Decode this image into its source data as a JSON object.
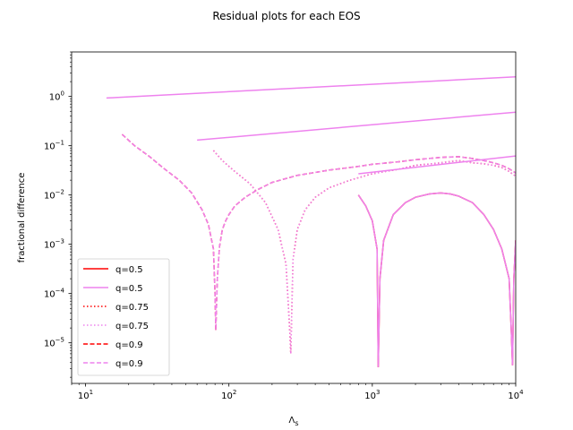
{
  "chart_data": {
    "type": "line",
    "title": "Residual plots for each EOS",
    "xlabel": "Λ",
    "xlabel_sub": "s",
    "ylabel": "fractional difference",
    "xscale": "log",
    "yscale": "log",
    "xlim": [
      8,
      10000
    ],
    "ylim": [
      1.5e-06,
      8
    ],
    "x_ticks": [
      {
        "value": 10,
        "base": "10",
        "exp": "1"
      },
      {
        "value": 100,
        "base": "10",
        "exp": "2"
      },
      {
        "value": 1000,
        "base": "10",
        "exp": "3"
      },
      {
        "value": 10000,
        "base": "10",
        "exp": "4"
      }
    ],
    "y_ticks": [
      {
        "value": 1e-05,
        "base": "10",
        "exp": "−5"
      },
      {
        "value": 0.0001,
        "base": "10",
        "exp": "−4"
      },
      {
        "value": 0.001,
        "base": "10",
        "exp": "−3"
      },
      {
        "value": 0.01,
        "base": "10",
        "exp": "−2"
      },
      {
        "value": 0.1,
        "base": "10",
        "exp": "−1"
      },
      {
        "value": 1,
        "base": "10",
        "exp": "0"
      }
    ],
    "legend_position": "lower-left",
    "series": [
      {
        "name": "q=0.5",
        "color": "#ff0000",
        "dash": "solid",
        "x": [
          800,
          900,
          1000,
          1080,
          1100,
          1130,
          1200,
          1400,
          1700,
          2000,
          2500,
          3000,
          3500,
          4000,
          5000,
          6000,
          7000,
          8000,
          9000,
          9300,
          9500,
          9700,
          10000
        ],
        "y": [
          0.01,
          0.006,
          0.003,
          0.0008,
          3.2e-06,
          0.0002,
          0.0012,
          0.004,
          0.007,
          0.009,
          0.0105,
          0.011,
          0.0105,
          0.0095,
          0.007,
          0.004,
          0.002,
          0.0008,
          0.0002,
          2e-05,
          3.5e-06,
          0.0002,
          0.0012
        ]
      },
      {
        "name": "q=0.5",
        "color": "#ee82ee",
        "dash": "solid",
        "x": [
          800,
          900,
          1000,
          1080,
          1100,
          1130,
          1200,
          1400,
          1700,
          2000,
          2500,
          3000,
          3500,
          4000,
          5000,
          6000,
          7000,
          8000,
          9000,
          9300,
          9500,
          9700,
          10000
        ],
        "y": [
          0.01,
          0.006,
          0.003,
          0.0008,
          3.2e-06,
          0.0002,
          0.0012,
          0.004,
          0.007,
          0.009,
          0.0105,
          0.011,
          0.0105,
          0.0095,
          0.007,
          0.004,
          0.002,
          0.0008,
          0.0002,
          2e-05,
          3.5e-06,
          0.0002,
          0.0012
        ]
      },
      {
        "name": "q=0.75",
        "color": "#ff0000",
        "dash": "dotted",
        "x": [
          78,
          90,
          110,
          140,
          180,
          220,
          250,
          265,
          270,
          280,
          300,
          340,
          400,
          500,
          700,
          1000,
          1500,
          2000,
          3000,
          4000,
          5000,
          6000,
          7000,
          8000,
          9000,
          10000
        ],
        "y": [
          0.08,
          0.05,
          0.03,
          0.017,
          0.007,
          0.002,
          0.0004,
          2e-05,
          6e-06,
          0.0005,
          0.002,
          0.005,
          0.009,
          0.014,
          0.02,
          0.027,
          0.033,
          0.04,
          0.045,
          0.05,
          0.045,
          0.043,
          0.04,
          0.036,
          0.03,
          0.024
        ]
      },
      {
        "name": "q=0.75",
        "color": "#ee82ee",
        "dash": "dotted",
        "x": [
          78,
          90,
          110,
          140,
          180,
          220,
          250,
          265,
          270,
          280,
          300,
          340,
          400,
          500,
          700,
          1000,
          1500,
          2000,
          3000,
          4000,
          5000,
          6000,
          7000,
          8000,
          9000,
          10000
        ],
        "y": [
          0.08,
          0.05,
          0.03,
          0.017,
          0.007,
          0.002,
          0.0004,
          2e-05,
          6e-06,
          0.0005,
          0.002,
          0.005,
          0.009,
          0.014,
          0.02,
          0.027,
          0.033,
          0.04,
          0.045,
          0.05,
          0.045,
          0.043,
          0.04,
          0.036,
          0.03,
          0.024
        ]
      },
      {
        "name": "q=0.9",
        "color": "#ff0000",
        "dash": "dashed",
        "x": [
          18,
          22,
          28,
          35,
          45,
          55,
          65,
          72,
          78,
          80,
          81,
          83,
          86,
          90,
          95,
          100,
          110,
          130,
          160,
          200,
          300,
          500,
          800,
          1000,
          1500,
          2000,
          3000,
          4000,
          5000,
          6000,
          7000,
          8000,
          9000,
          10000
        ],
        "y": [
          0.17,
          0.1,
          0.06,
          0.035,
          0.02,
          0.011,
          0.005,
          0.0025,
          0.0008,
          0.0001,
          1.8e-05,
          0.0002,
          0.0009,
          0.002,
          0.003,
          0.004,
          0.006,
          0.009,
          0.013,
          0.018,
          0.025,
          0.032,
          0.038,
          0.042,
          0.047,
          0.052,
          0.058,
          0.06,
          0.055,
          0.05,
          0.045,
          0.04,
          0.034,
          0.028
        ]
      },
      {
        "name": "q=0.9",
        "color": "#ee82ee",
        "dash": "dashed",
        "x": [
          18,
          22,
          28,
          35,
          45,
          55,
          65,
          72,
          78,
          80,
          81,
          83,
          86,
          90,
          95,
          100,
          110,
          130,
          160,
          200,
          300,
          500,
          800,
          1000,
          1500,
          2000,
          3000,
          4000,
          5000,
          6000,
          7000,
          8000,
          9000,
          10000
        ],
        "y": [
          0.17,
          0.1,
          0.06,
          0.035,
          0.02,
          0.011,
          0.005,
          0.0025,
          0.0008,
          0.0001,
          1.8e-05,
          0.0002,
          0.0009,
          0.002,
          0.003,
          0.004,
          0.006,
          0.009,
          0.013,
          0.018,
          0.025,
          0.032,
          0.038,
          0.042,
          0.047,
          0.052,
          0.058,
          0.06,
          0.055,
          0.05,
          0.045,
          0.04,
          0.034,
          0.028
        ]
      },
      {
        "color": "#ee82ee",
        "dash": "solid",
        "legend": false,
        "x": [
          14,
          10000
        ],
        "y": [
          0.93,
          2.5
        ]
      },
      {
        "color": "#ee82ee",
        "dash": "solid",
        "legend": false,
        "x": [
          60,
          10000
        ],
        "y": [
          0.13,
          0.48
        ]
      },
      {
        "color": "#ee82ee",
        "dash": "solid",
        "legend": false,
        "x": [
          800,
          10000
        ],
        "y": [
          0.027,
          0.062
        ]
      }
    ]
  }
}
